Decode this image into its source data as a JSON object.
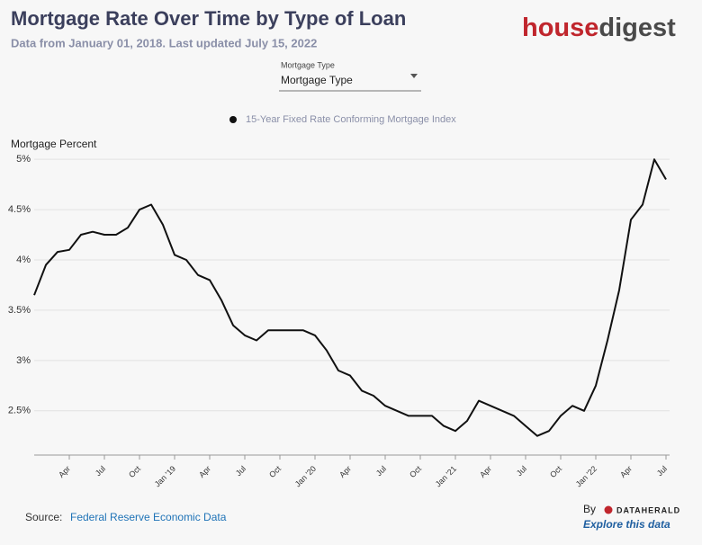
{
  "header": {
    "title": "Mortgage Rate Over Time by Type of Loan",
    "subtitle": "Data from January 01, 2018. Last updated July 15, 2022",
    "logo_a": "house",
    "logo_b": "digest"
  },
  "control": {
    "label": "Mortgage Type",
    "value": "Mortgage Type"
  },
  "footer": {
    "source_label": "Source:",
    "source": "Federal Reserve Economic Data",
    "by": "By",
    "brand": "DATAHERALD",
    "explore": "Explore this data"
  },
  "chart_data": {
    "type": "line",
    "y_label": "Mortgage Percent",
    "x": [
      "2018-01",
      "2018-02",
      "2018-03",
      "2018-04",
      "2018-05",
      "2018-06",
      "2018-07",
      "2018-08",
      "2018-09",
      "2018-10",
      "2018-11",
      "2018-12",
      "2019-01",
      "2019-02",
      "2019-03",
      "2019-04",
      "2019-05",
      "2019-06",
      "2019-07",
      "2019-08",
      "2019-09",
      "2019-10",
      "2019-11",
      "2019-12",
      "2020-01",
      "2020-02",
      "2020-03",
      "2020-04",
      "2020-05",
      "2020-06",
      "2020-07",
      "2020-08",
      "2020-09",
      "2020-10",
      "2020-11",
      "2020-12",
      "2021-01",
      "2021-02",
      "2021-03",
      "2021-04",
      "2021-05",
      "2021-06",
      "2021-07",
      "2021-08",
      "2021-09",
      "2021-10",
      "2021-11",
      "2021-12",
      "2022-01",
      "2022-02",
      "2022-03",
      "2022-04",
      "2022-05",
      "2022-06",
      "2022-07"
    ],
    "series": [
      {
        "name": "15-Year Fixed Rate Conforming Mortgage Index",
        "color": "#111111",
        "values": [
          3.65,
          3.95,
          4.08,
          4.1,
          4.25,
          4.28,
          4.25,
          4.25,
          4.32,
          4.5,
          4.55,
          4.35,
          4.05,
          4.0,
          3.85,
          3.8,
          3.6,
          3.35,
          3.25,
          3.2,
          3.3,
          3.3,
          3.3,
          3.3,
          3.25,
          3.1,
          2.9,
          2.85,
          2.7,
          2.65,
          2.55,
          2.5,
          2.45,
          2.45,
          2.45,
          2.35,
          2.3,
          2.4,
          2.6,
          2.55,
          2.5,
          2.45,
          2.35,
          2.25,
          2.3,
          2.45,
          2.55,
          2.5,
          2.75,
          3.2,
          3.7,
          4.4,
          4.55,
          5.0,
          4.8
        ]
      }
    ],
    "xlim": [
      "2018-01",
      "2022-07"
    ],
    "xticks": [
      {
        "value": "2018-04",
        "label": "Apr"
      },
      {
        "value": "2018-07",
        "label": "Jul"
      },
      {
        "value": "2018-10",
        "label": "Oct"
      },
      {
        "value": "2019-01",
        "label": "Jan '19"
      },
      {
        "value": "2019-04",
        "label": "Apr"
      },
      {
        "value": "2019-07",
        "label": "Jul"
      },
      {
        "value": "2019-10",
        "label": "Oct"
      },
      {
        "value": "2020-01",
        "label": "Jan '20"
      },
      {
        "value": "2020-04",
        "label": "Apr"
      },
      {
        "value": "2020-07",
        "label": "Jul"
      },
      {
        "value": "2020-10",
        "label": "Oct"
      },
      {
        "value": "2021-01",
        "label": "Jan '21"
      },
      {
        "value": "2021-04",
        "label": "Apr"
      },
      {
        "value": "2021-07",
        "label": "Jul"
      },
      {
        "value": "2021-10",
        "label": "Oct"
      },
      {
        "value": "2022-01",
        "label": "Jan '22"
      },
      {
        "value": "2022-04",
        "label": "Apr"
      },
      {
        "value": "2022-07",
        "label": "Jul"
      }
    ],
    "ylim": [
      2.06,
      5.3
    ],
    "yticks": [
      {
        "value": 2.5,
        "label": "2.5%"
      },
      {
        "value": 3,
        "label": "3%"
      },
      {
        "value": 3.5,
        "label": "3.5%"
      },
      {
        "value": 4,
        "label": "4%"
      },
      {
        "value": 4.5,
        "label": "4.5%"
      },
      {
        "value": 5,
        "label": "5%"
      }
    ],
    "grid": true,
    "legend": "top"
  }
}
